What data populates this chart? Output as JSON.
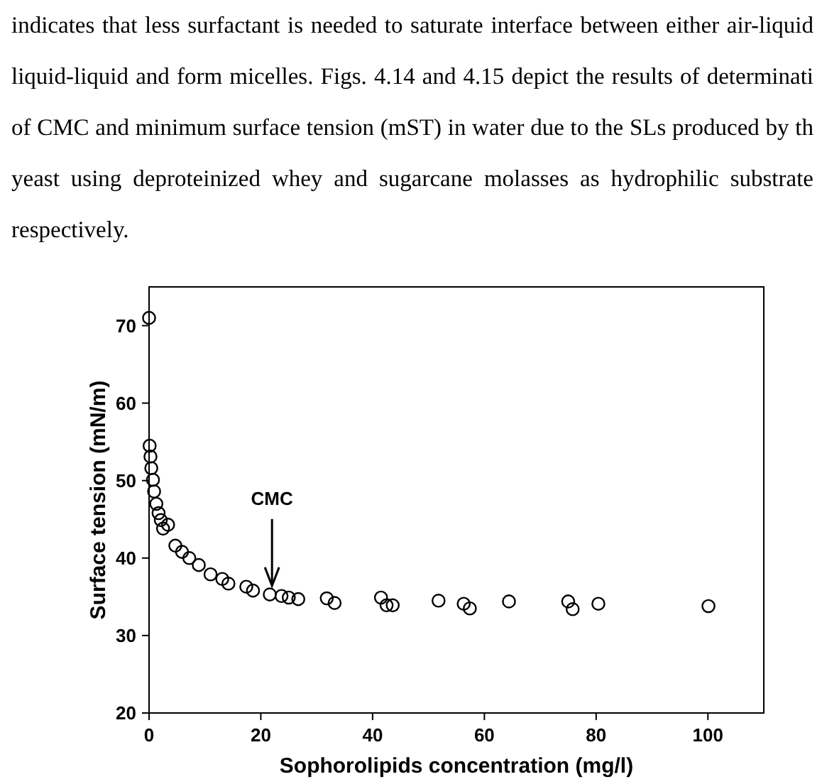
{
  "chart_data": {
    "type": "scatter",
    "xlabel": "Sophorolipids concentration (mg/l)",
    "ylabel": "Surface tension (mN/m)",
    "annotations": [
      "indicates that less surfactant is needed to saturate interface between either air-liquid liquid-liquid and form micelles. Figs. 4.14 and 4.15 depict the results of determinati of CMC and minimum surface tension (mST) in water due to the SLs produced by th yeast using deproteinized whey and sugarcane molasses as hydrophilic substrate respectively.",
      {
        "text": "CMC",
        "x": 22,
        "y": 35.5
      }
    ],
    "xlim": [
      0,
      110
    ],
    "xticks": [
      0,
      20,
      40,
      60,
      80,
      100
    ],
    "ylim": [
      20,
      75
    ],
    "yticks": [
      20,
      30,
      40,
      50,
      60,
      70
    ],
    "grid": false,
    "marker": "circle",
    "series": [
      {
        "color": "#000000",
        "x": [
          0,
          0.1,
          0.25,
          0.4,
          0.7,
          0.9,
          1.3,
          1.7,
          2.1,
          2.5,
          3.4,
          4.7,
          5.9,
          7.2,
          8.9,
          11,
          13.1,
          14.2,
          17.4,
          18.6,
          21.6,
          23.7,
          25,
          26.7,
          31.8,
          33.2,
          41.5,
          42.5,
          43.6,
          51.8,
          56.3,
          57.4,
          64.4,
          75,
          75.8,
          80.4,
          100.1
        ],
        "values": [
          71,
          54.5,
          53.1,
          51.6,
          50.1,
          48.6,
          47,
          45.8,
          44.9,
          43.8,
          44.3,
          41.6,
          40.8,
          40,
          39.1,
          37.9,
          37.3,
          36.7,
          36.3,
          35.8,
          35.3,
          35.1,
          34.9,
          34.7,
          34.8,
          34.2,
          34.9,
          33.9,
          33.9,
          34.5,
          34.1,
          33.5,
          34.4,
          34.4,
          33.4,
          34.1,
          33.8
        ]
      }
    ]
  }
}
